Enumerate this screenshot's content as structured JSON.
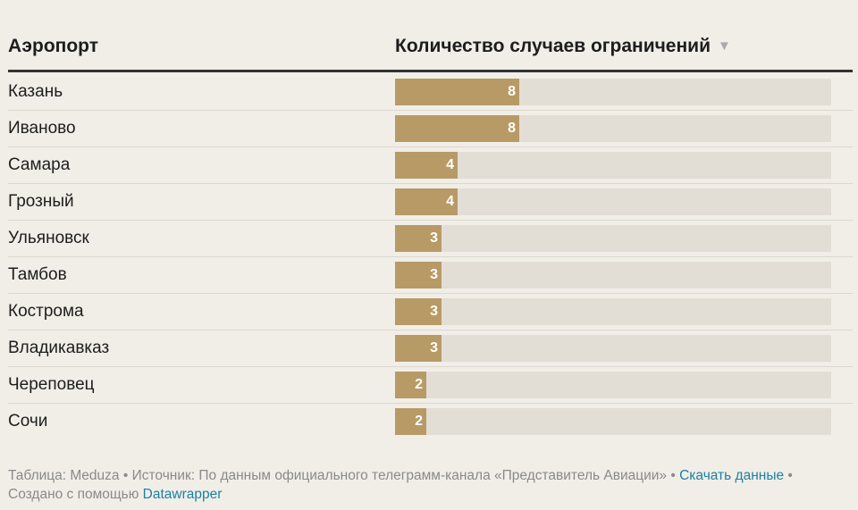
{
  "table": {
    "col_airport": "Аэропорт",
    "col_count": "Количество случаев ограничений",
    "sort_icon": "▼"
  },
  "colors": {
    "bar": "#b89a66",
    "track": "#e2ded6",
    "background": "#f1eee8",
    "link": "#1d81a2"
  },
  "chart_data": {
    "type": "bar",
    "orientation": "horizontal",
    "title": "",
    "xlabel": "Количество случаев ограничений",
    "ylabel": "Аэропорт",
    "xlim": [
      0,
      28
    ],
    "categories": [
      "Казань",
      "Иваново",
      "Самара",
      "Грозный",
      "Ульяновск",
      "Тамбов",
      "Кострома",
      "Владикавказ",
      "Череповец",
      "Сочи"
    ],
    "values": [
      8,
      8,
      4,
      4,
      3,
      3,
      3,
      3,
      2,
      2
    ]
  },
  "footer": {
    "table_label": "Таблица: Meduza",
    "source_label": "Источник: По данным официального телеграмм-канала «Представитель Авиации»",
    "download_link": "Скачать данные",
    "created_label": "Создано с помощью",
    "datawrapper_link": "Datawrapper",
    "bullet": "•"
  }
}
